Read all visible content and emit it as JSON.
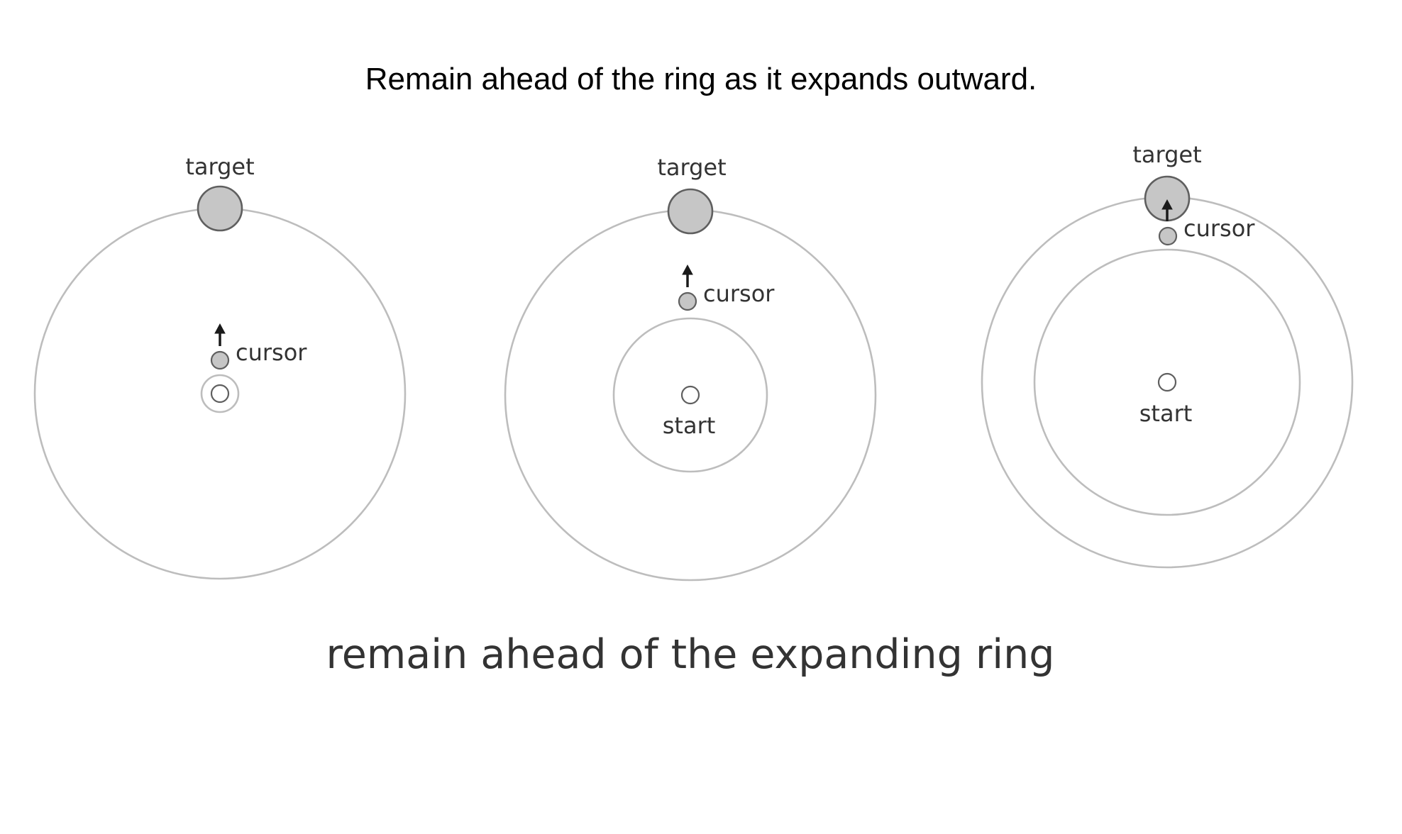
{
  "heading": "Remain ahead of the ring as it expands outward.",
  "caption": "remain ahead of the expanding ring",
  "colors": {
    "ring": "#bdbdbd",
    "dot_fill": "#c6c6c6",
    "dot_stroke": "#5f5f5f",
    "arrow": "#1a1a1a",
    "caption_text": "#333333"
  },
  "panels": [
    {
      "target_label": "target",
      "cursor_label": "cursor",
      "start_label": ""
    },
    {
      "target_label": "target",
      "cursor_label": "cursor",
      "start_label": "start"
    },
    {
      "target_label": "target",
      "cursor_label": "cursor",
      "start_label": "start"
    }
  ]
}
